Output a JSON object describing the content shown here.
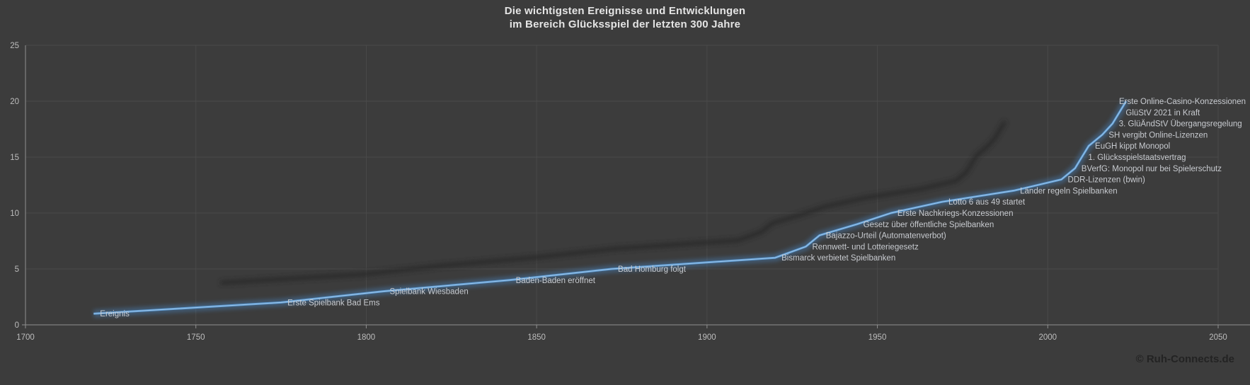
{
  "title": {
    "line1": "Die wichtigsten Ereignisse und Entwicklungen",
    "line2": "im Bereich Glücksspiel der letzten 300 Jahre"
  },
  "footer": {
    "copyright": "© Ruh-Connects.de"
  },
  "colors": {
    "background": "#3c3c3c",
    "title_text": "#e4e4e4",
    "gridline": "#4a4a4a",
    "axis": "#8f8f8f",
    "tick_text": "#bdbdbd",
    "event_label_text": "#c8cbd0",
    "line_core": "#9cc2e5",
    "line_main": "#5b9bd5",
    "line_glow": "#4a7fb5",
    "shadow": "#262626",
    "copyright_text": "#232323"
  },
  "chart_data": {
    "type": "line",
    "title": "Die wichtigsten Ereignisse und Entwicklungen im Bereich Glücksspiel der letzten 300 Jahre",
    "series_name": "Ereignis",
    "xlabel": "",
    "ylabel": "",
    "xlim": [
      1700,
      2050
    ],
    "ylim": [
      0,
      25
    ],
    "x_ticks": [
      1700,
      1750,
      1800,
      1850,
      1900,
      1950,
      2000,
      2050
    ],
    "y_ticks": [
      0,
      5,
      10,
      15,
      20,
      25
    ],
    "grid": true,
    "legend": "none",
    "points": [
      {
        "label": "Ereignis",
        "year": 1720,
        "value": 1
      },
      {
        "label": "Erste Spielbank Bad Ems",
        "year": 1775,
        "value": 2
      },
      {
        "label": "Spielbank Wiesbaden",
        "year": 1805,
        "value": 3
      },
      {
        "label": "Baden-Baden eröffnet",
        "year": 1842,
        "value": 4
      },
      {
        "label": "Bad Homburg folgt",
        "year": 1872,
        "value": 5
      },
      {
        "label": "Bismarck verbietet Spielbanken",
        "year": 1920,
        "value": 6
      },
      {
        "label": "Rennwett- und Lotteriegesetz",
        "year": 1929,
        "value": 7
      },
      {
        "label": "Bajazzo-Urteil (Automatenverbot)",
        "year": 1933,
        "value": 8
      },
      {
        "label": "Gesetz über öffentliche Spielbanken",
        "year": 1944,
        "value": 9
      },
      {
        "label": "Erste Nachkriegs-Konzessionen",
        "year": 1954,
        "value": 10
      },
      {
        "label": "Lotto 6 aus 49 startet",
        "year": 1969,
        "value": 11
      },
      {
        "label": "Länder regeln Spielbanken",
        "year": 1990,
        "value": 12
      },
      {
        "label": "DDR-Lizenzen (bwin)",
        "year": 2004,
        "value": 13
      },
      {
        "label": "BVerfG: Monopol nur bei Spielerschutz",
        "year": 2008,
        "value": 14
      },
      {
        "label": "1. Glücksspielstaatsvertrag",
        "year": 2010,
        "value": 15
      },
      {
        "label": "EuGH kippt Monopol",
        "year": 2012,
        "value": 16
      },
      {
        "label": "SH vergibt Online-Lizenzen",
        "year": 2016,
        "value": 17
      },
      {
        "label": "3. GlüÄndStV Übergangsregelung",
        "year": 2019,
        "value": 18
      },
      {
        "label": "GlüStV 2021 in Kraft",
        "year": 2021,
        "value": 19
      },
      {
        "label": "Erste Online-Casino-Konzessionen",
        "year": 2023,
        "value": 20
      }
    ]
  }
}
